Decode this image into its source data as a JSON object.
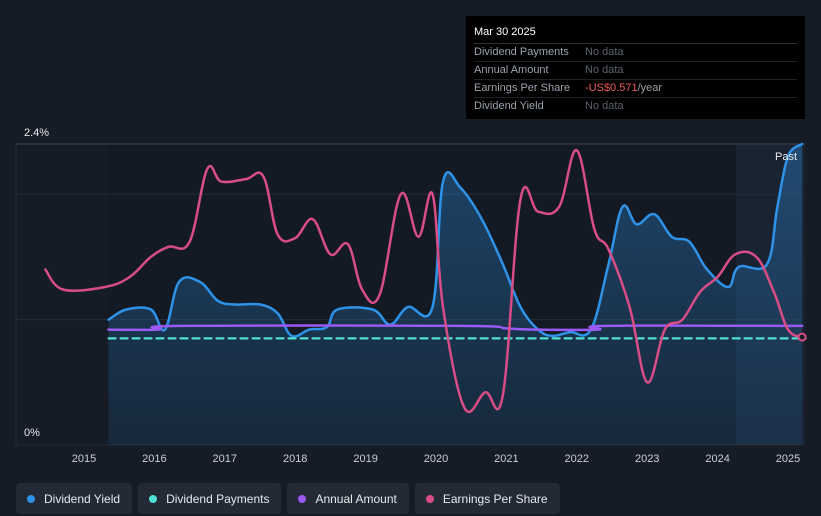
{
  "tooltip": {
    "date": "Mar 30 2025",
    "rows": [
      {
        "label": "Dividend Payments",
        "value": "No data"
      },
      {
        "label": "Annual Amount",
        "value": "No data"
      },
      {
        "label": "Earnings Per Share",
        "value": "-US$0.571",
        "unit": "/year"
      },
      {
        "label": "Dividend Yield",
        "value": "No data"
      }
    ]
  },
  "legend": [
    {
      "label": "Dividend Yield",
      "color": "#2e93e8"
    },
    {
      "label": "Dividend Payments",
      "color": "#4fe0d2"
    },
    {
      "label": "Annual Amount",
      "color": "#9b59f5"
    },
    {
      "label": "Earnings Per Share",
      "color": "#d84d86"
    }
  ],
  "chart_data": {
    "type": "line",
    "ylim": [
      0,
      2.4
    ],
    "y_ticks": [
      "2.4%",
      "0%"
    ],
    "x_ticks": [
      "2015",
      "2016",
      "2017",
      "2018",
      "2019",
      "2020",
      "2021",
      "2022",
      "2023",
      "2024",
      "2025"
    ],
    "past_label": "Past",
    "series": [
      {
        "name": "Dividend Yield",
        "color": "#2e93e8",
        "points": [
          [
            2015.35,
            1.0
          ],
          [
            2015.6,
            1.08
          ],
          [
            2015.95,
            1.08
          ],
          [
            2016.15,
            0.92
          ],
          [
            2016.35,
            1.3
          ],
          [
            2016.65,
            1.3
          ],
          [
            2016.9,
            1.15
          ],
          [
            2017.15,
            1.12
          ],
          [
            2017.5,
            1.12
          ],
          [
            2017.75,
            1.05
          ],
          [
            2017.95,
            0.87
          ],
          [
            2018.2,
            0.92
          ],
          [
            2018.45,
            0.94
          ],
          [
            2018.6,
            1.08
          ],
          [
            2019.1,
            1.08
          ],
          [
            2019.35,
            0.96
          ],
          [
            2019.6,
            1.1
          ],
          [
            2019.95,
            1.1
          ],
          [
            2020.1,
            2.1
          ],
          [
            2020.35,
            2.05
          ],
          [
            2020.65,
            1.8
          ],
          [
            2020.95,
            1.44
          ],
          [
            2021.2,
            1.1
          ],
          [
            2021.45,
            0.92
          ],
          [
            2021.65,
            0.87
          ],
          [
            2021.9,
            0.9
          ],
          [
            2022.2,
            0.92
          ],
          [
            2022.45,
            1.44
          ],
          [
            2022.65,
            1.9
          ],
          [
            2022.85,
            1.76
          ],
          [
            2023.1,
            1.84
          ],
          [
            2023.35,
            1.66
          ],
          [
            2023.6,
            1.62
          ],
          [
            2023.85,
            1.4
          ],
          [
            2024.15,
            1.26
          ],
          [
            2024.3,
            1.42
          ],
          [
            2024.7,
            1.44
          ],
          [
            2024.85,
            1.9
          ],
          [
            2025.0,
            2.3
          ],
          [
            2025.2,
            2.4
          ]
        ]
      },
      {
        "name": "Dividend Payments",
        "color": "#4fe0d2",
        "points": [
          [
            2015.35,
            0.85
          ],
          [
            2025.25,
            0.85
          ]
        ]
      },
      {
        "name": "Annual Amount",
        "color": "#9b59f5",
        "points": [
          [
            2015.35,
            0.92
          ],
          [
            2016.05,
            0.92
          ],
          [
            2016.35,
            0.95
          ],
          [
            2020.35,
            0.95
          ],
          [
            2021.0,
            0.93
          ],
          [
            2021.4,
            0.92
          ],
          [
            2022.3,
            0.92
          ],
          [
            2022.4,
            0.95
          ],
          [
            2025.2,
            0.95
          ]
        ]
      },
      {
        "name": "Earnings Per Share",
        "color": "#d84d86",
        "points": [
          [
            2014.45,
            1.4
          ],
          [
            2014.7,
            1.24
          ],
          [
            2015.3,
            1.26
          ],
          [
            2015.65,
            1.34
          ],
          [
            2015.95,
            1.5
          ],
          [
            2016.2,
            1.58
          ],
          [
            2016.5,
            1.62
          ],
          [
            2016.75,
            2.2
          ],
          [
            2016.95,
            2.1
          ],
          [
            2017.3,
            2.12
          ],
          [
            2017.55,
            2.14
          ],
          [
            2017.75,
            1.68
          ],
          [
            2018.0,
            1.65
          ],
          [
            2018.25,
            1.8
          ],
          [
            2018.5,
            1.52
          ],
          [
            2018.75,
            1.6
          ],
          [
            2018.95,
            1.24
          ],
          [
            2019.2,
            1.2
          ],
          [
            2019.5,
            2.0
          ],
          [
            2019.75,
            1.66
          ],
          [
            2019.95,
            2.0
          ],
          [
            2020.1,
            1.1
          ],
          [
            2020.4,
            0.3
          ],
          [
            2020.7,
            0.42
          ],
          [
            2020.95,
            0.4
          ],
          [
            2021.2,
            1.96
          ],
          [
            2021.45,
            1.86
          ],
          [
            2021.75,
            1.9
          ],
          [
            2022.0,
            2.35
          ],
          [
            2022.25,
            1.72
          ],
          [
            2022.45,
            1.56
          ],
          [
            2022.75,
            1.1
          ],
          [
            2023.0,
            0.5
          ],
          [
            2023.25,
            0.92
          ],
          [
            2023.5,
            1.0
          ],
          [
            2023.75,
            1.22
          ],
          [
            2024.0,
            1.34
          ],
          [
            2024.25,
            1.52
          ],
          [
            2024.55,
            1.5
          ],
          [
            2024.8,
            1.22
          ],
          [
            2025.0,
            0.92
          ],
          [
            2025.2,
            0.86
          ]
        ]
      }
    ]
  }
}
